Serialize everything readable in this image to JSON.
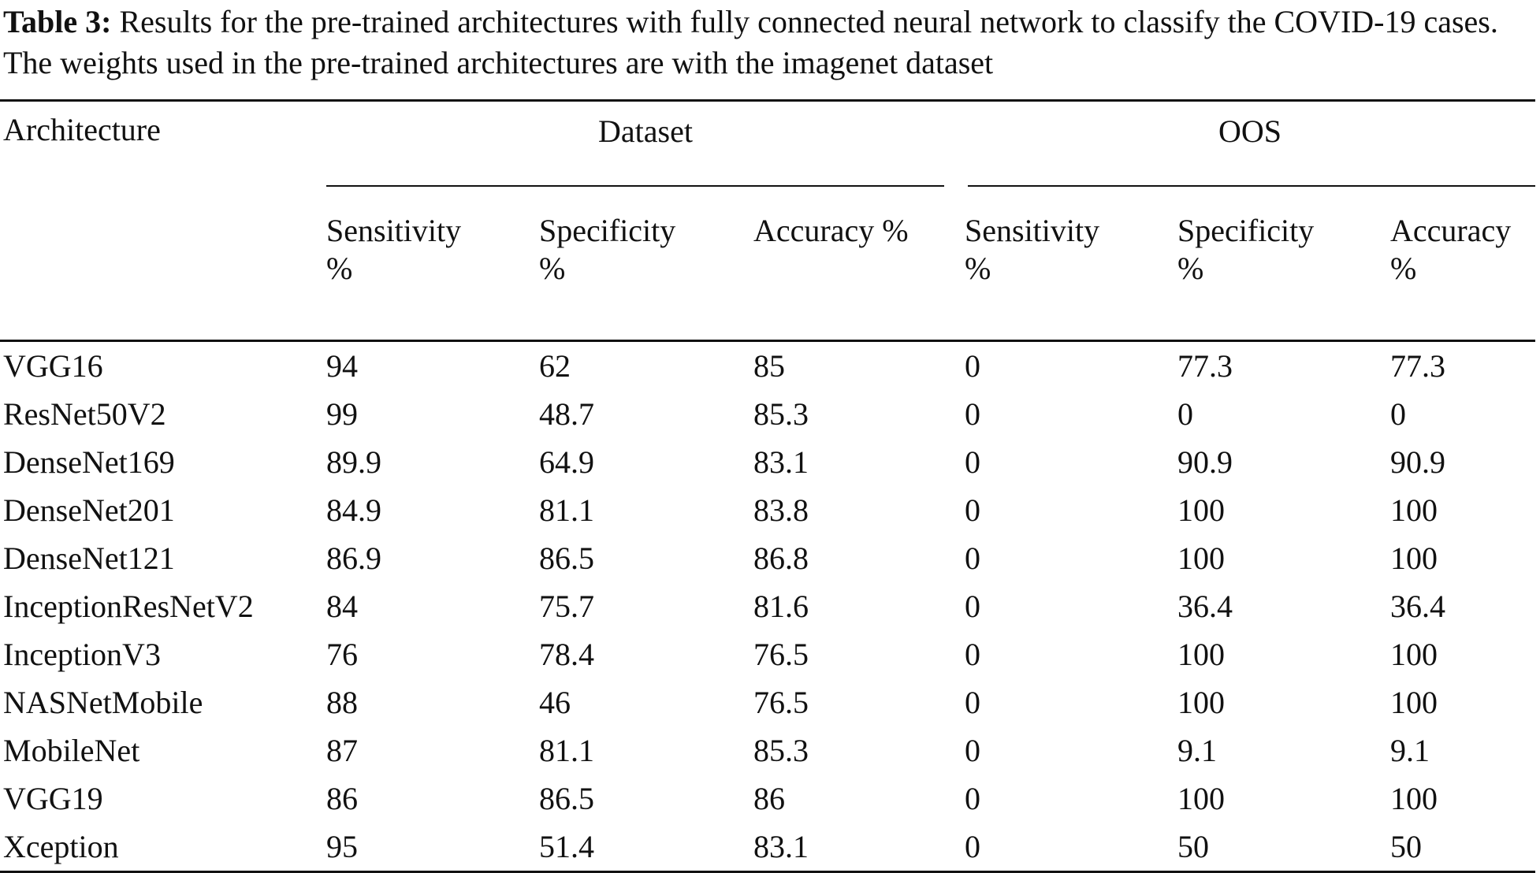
{
  "caption": {
    "label": "Table 3:",
    "text": " Results for the pre-trained architectures with fully connected neural network to classify the COVID-19 cases. The weights used in the pre-trained architectures are with the imagenet dataset"
  },
  "table": {
    "arch_header": "Architecture",
    "groups": [
      "Dataset",
      "OOS"
    ],
    "sub_headers": [
      [
        "Sensitivity",
        "%"
      ],
      [
        "Specificity",
        "%"
      ],
      [
        "Accuracy %",
        ""
      ],
      [
        "Sensitivity",
        "%"
      ],
      [
        "Specificity",
        "%"
      ],
      [
        "Accuracy",
        "%"
      ]
    ],
    "rows": [
      [
        "VGG16",
        "94",
        "62",
        "85",
        "0",
        "77.3",
        "77.3"
      ],
      [
        "ResNet50V2",
        "99",
        "48.7",
        "85.3",
        "0",
        "0",
        "0"
      ],
      [
        "DenseNet169",
        "89.9",
        "64.9",
        "83.1",
        "0",
        "90.9",
        "90.9"
      ],
      [
        "DenseNet201",
        "84.9",
        "81.1",
        "83.8",
        "0",
        "100",
        "100"
      ],
      [
        "DenseNet121",
        "86.9",
        "86.5",
        "86.8",
        "0",
        "100",
        "100"
      ],
      [
        "InceptionResNetV2",
        "84",
        "75.7",
        "81.6",
        "0",
        "36.4",
        "36.4"
      ],
      [
        "InceptionV3",
        "76",
        "78.4",
        "76.5",
        "0",
        "100",
        "100"
      ],
      [
        "NASNetMobile",
        "88",
        "46",
        "76.5",
        "0",
        "100",
        "100"
      ],
      [
        "MobileNet",
        "87",
        "81.1",
        "85.3",
        "0",
        "9.1",
        "9.1"
      ],
      [
        "VGG19",
        "86",
        "86.5",
        "86",
        "0",
        "100",
        "100"
      ],
      [
        "Xception",
        "95",
        "51.4",
        "83.1",
        "0",
        "50",
        "50"
      ]
    ]
  }
}
